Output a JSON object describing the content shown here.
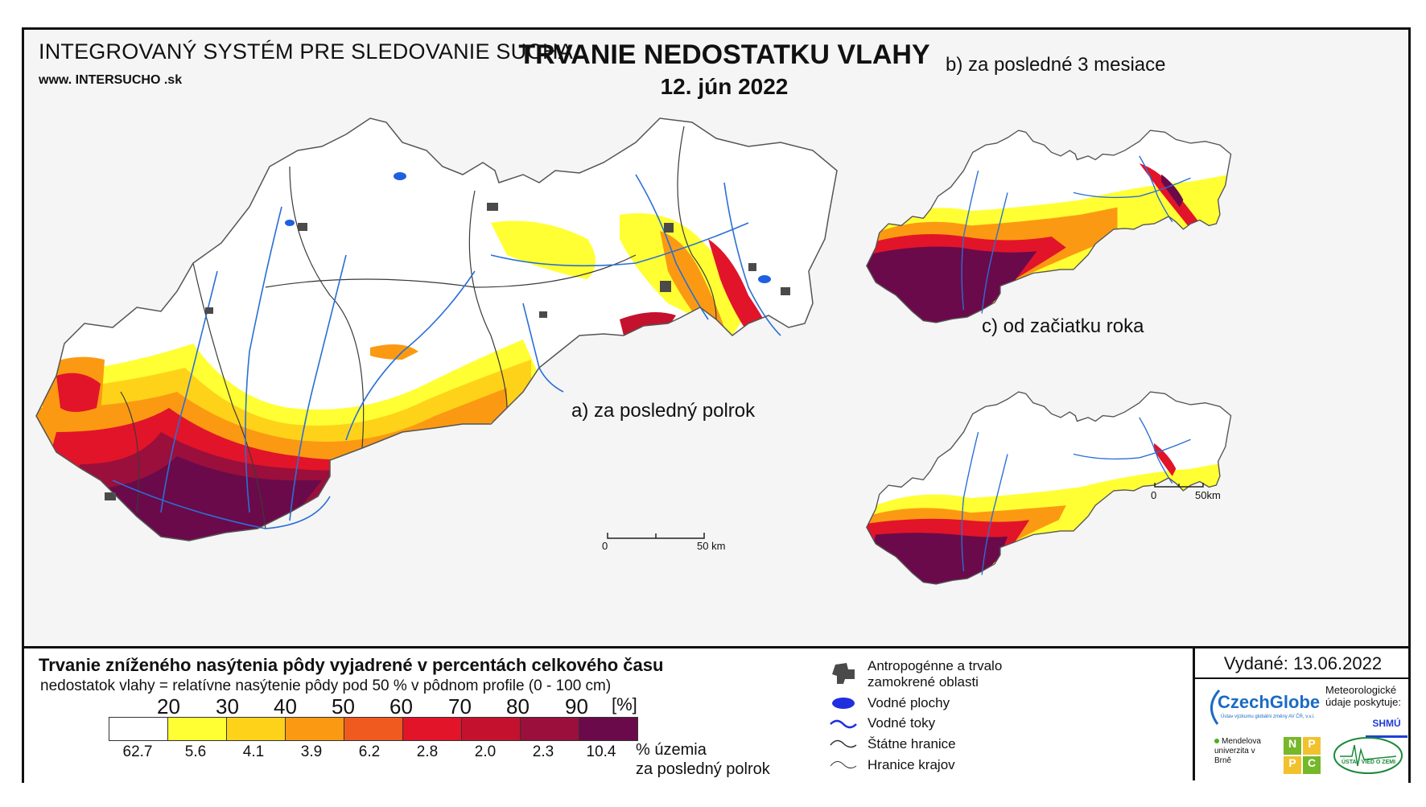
{
  "header": {
    "system_title": "INTEGROVANÝ SYSTÉM PRE SLEDOVANIE SUCHA",
    "url": "www. INTERSUCHO .sk",
    "title": "TRVANIE NEDOSTATKU VLAHY",
    "date": "12. jún 2022"
  },
  "panels": {
    "a_label": "a) za posledný polrok",
    "b_label": "b) za posledné 3 mesiace",
    "c_label": "c) od začiatku roka"
  },
  "scales": {
    "main": {
      "zero": "0",
      "end": "50 km"
    },
    "small": {
      "zero": "0",
      "end": "50km"
    }
  },
  "legend": {
    "title": "Trvanie zníženého nasýtenia pôdy vyjadrené v percentách celkového času",
    "subtitle": "nedostatok vlahy = relatívne nasýtenie pôdy pod 50 % v pôdnom profile (0 - 100 cm)",
    "unit": "[%]",
    "ticks": [
      "20",
      "30",
      "40",
      "50",
      "60",
      "70",
      "80",
      "90"
    ],
    "classes": [
      {
        "color": "#ffffff",
        "share": "62.7"
      },
      {
        "color": "#ffff33",
        "share": "5.6"
      },
      {
        "color": "#ffd21a",
        "share": "4.1"
      },
      {
        "color": "#fb9a12",
        "share": "3.9"
      },
      {
        "color": "#f05a1e",
        "share": "6.2"
      },
      {
        "color": "#e2142a",
        "share": "2.8"
      },
      {
        "color": "#c4122e",
        "share": "2.0"
      },
      {
        "color": "#9a0f3c",
        "share": "2.3"
      },
      {
        "color": "#6a0a4a",
        "share": "10.4"
      }
    ],
    "share_label_1": "% územia",
    "share_label_2": "za posledný polrok"
  },
  "map_legend": {
    "items": [
      {
        "icon": "anthropogenic-area-icon",
        "label": "Antropogénne a trvalo zamokrené oblasti"
      },
      {
        "icon": "water-body-icon",
        "label": "Vodné plochy"
      },
      {
        "icon": "river-icon",
        "label": "Vodné toky"
      },
      {
        "icon": "state-border-icon",
        "label": "Štátne hranice"
      },
      {
        "icon": "region-border-icon",
        "label": "Hranice krajov"
      }
    ]
  },
  "issued": {
    "text": "Vydané: 13.06.2022",
    "czechglobe": "CzechGlobe",
    "czechglobe_sub": "Ústav výzkumu globální změny AV ČR, v.v.i.",
    "met_label": "Meteorologické údaje poskytuje:",
    "shmu": "SHMÚ",
    "mendel": "Mendelova univerzita v Brně",
    "nppc": [
      "N",
      "P",
      "P",
      "C"
    ],
    "uvz": "ÚSTAV VIED O ZEMI"
  },
  "colors": {
    "river": "#2a6fd6",
    "border": "#3a3a3a",
    "anthropogenic": "#4a4a4a"
  }
}
